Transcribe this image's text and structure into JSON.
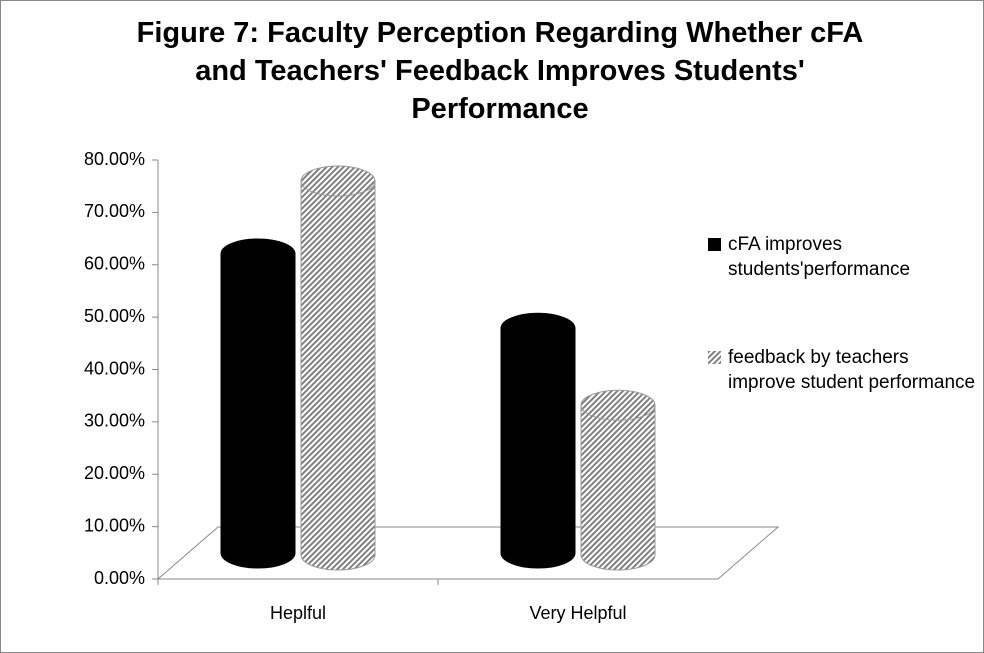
{
  "chart_data": {
    "type": "bar3d",
    "title": "Figure 7: Faculty Perception Regarding Whether cFA and Teachers' Feedback Improves Students' Performance",
    "categories": [
      "Heplful",
      "Very Helpful"
    ],
    "series": [
      {
        "name": "cFA improves students'performance",
        "color": "#000000",
        "pattern": "solid",
        "values": [
          57.1,
          42.9
        ]
      },
      {
        "name": "feedback by teachers improve student performance",
        "color": "#808080",
        "pattern": "hatch",
        "values": [
          71.4,
          28.6
        ]
      }
    ],
    "ylim": [
      0,
      80
    ],
    "yticks": [
      {
        "value": 0,
        "label": "0.00%"
      },
      {
        "value": 10,
        "label": "10.00%"
      },
      {
        "value": 20,
        "label": "20.00%"
      },
      {
        "value": 30,
        "label": "30.00%"
      },
      {
        "value": 40,
        "label": "40.00%"
      },
      {
        "value": 50,
        "label": "50.00%"
      },
      {
        "value": 60,
        "label": "60.00%"
      },
      {
        "value": 70,
        "label": "70.00%"
      },
      {
        "value": 80,
        "label": "80.00%"
      }
    ],
    "legend": "right"
  }
}
